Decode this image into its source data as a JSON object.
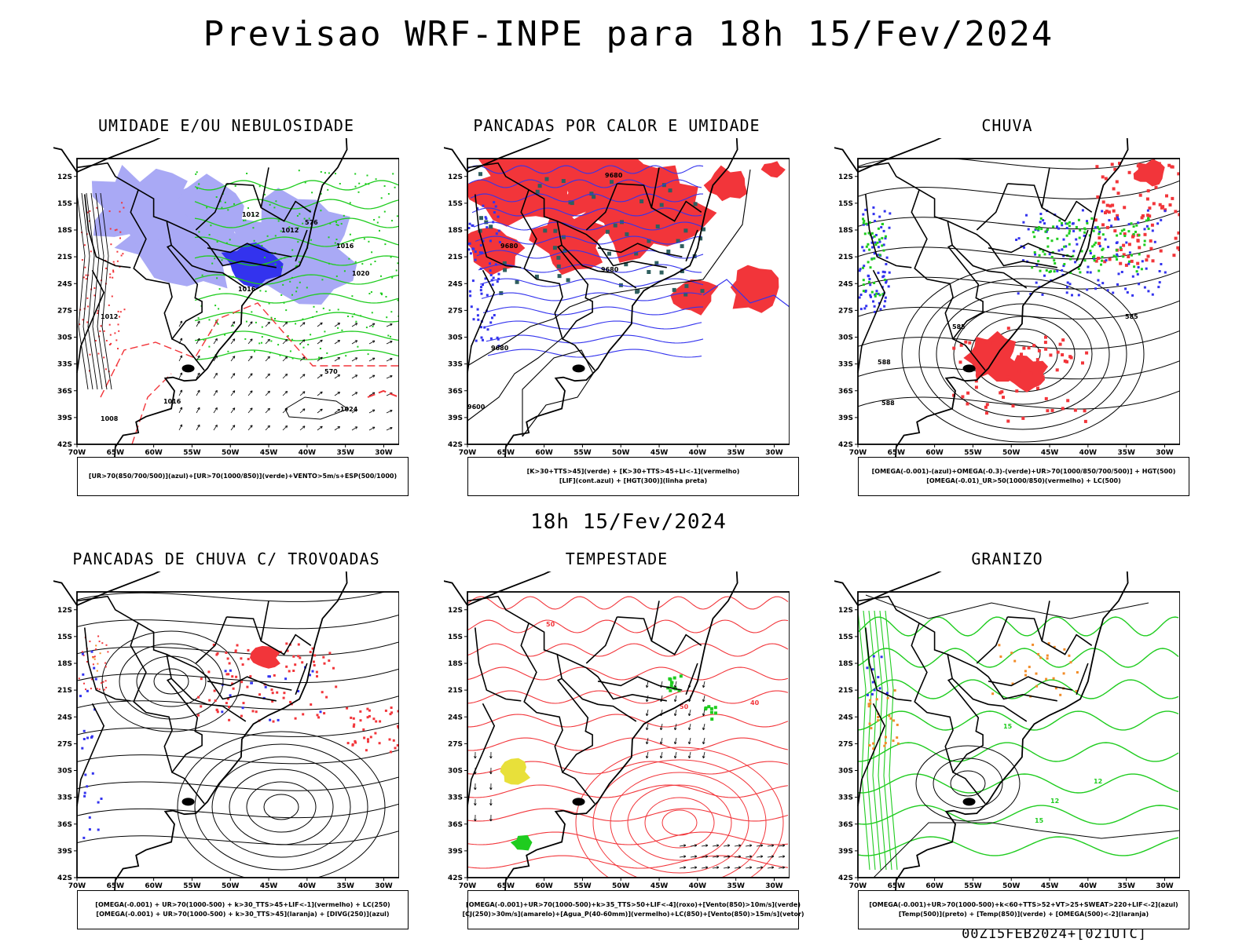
{
  "title": "Previsao WRF-INPE  para 18h 15/Fev/2024",
  "middle_title": "18h 15/Fev/2024",
  "footer": "00Z15FEB2024+[021UTC]",
  "axes": {
    "lat_labels": [
      "12S",
      "15S",
      "18S",
      "21S",
      "24S",
      "27S",
      "30S",
      "33S",
      "36S",
      "39S",
      "42S"
    ],
    "lon_labels": [
      "70W",
      "65W",
      "60W",
      "55W",
      "50W",
      "45W",
      "40W",
      "35W",
      "30W"
    ]
  },
  "colors": {
    "humid_blue": "#a9a9f5",
    "deep_blue": "#3333ee",
    "green": "#1fcc1f",
    "red": "#f2353a",
    "orange": "#f28c28",
    "yellow": "#e8e03a"
  },
  "panels": [
    {
      "title": "UMIDADE E/OU NEBULOSIDADE",
      "legend": [
        "[UR>70(850/700/500)](azul)+[UR>70(1000/850)](verde)+VENTO>5m/s+ESP(500/1000)"
      ],
      "labels": [
        "1012",
        "1012",
        "1016",
        "1016",
        "1020",
        "1024",
        "1008",
        "1016",
        "1012",
        "576",
        "570"
      ]
    },
    {
      "title": "PANCADAS POR CALOR E UMIDADE",
      "legend": [
        "[K>30+TTS>45](verde) + [K>30+TTS>45+LI<-1](vermelho)",
        "[LIF](cont.azul) + [HGT(300)](linha preta)"
      ],
      "labels": [
        "9680",
        "9680",
        "9600",
        "9680",
        "9680"
      ]
    },
    {
      "title": "CHUVA",
      "legend": [
        "[OMEGA(-0.001)-(azul)+OMEGA(-0.3)-(verde)+UR>70(1000/850/700/500)] + HGT(500)",
        "[OMEGA(-0.01)_UR>50(1000/850)(vermelho) + LC(500)"
      ],
      "labels": [
        "585",
        "588",
        "588",
        "585"
      ]
    },
    {
      "title": "PANCADAS DE CHUVA C/ TROVOADAS",
      "legend": [
        "[OMEGA(-0.001) + UR>70(1000-500) + k>30_TTS>45+LIF<-1](vermelho) + LC(250)",
        "[OMEGA(-0.001) + UR>70(1000-500) + k>30_TTS>45](laranja) + [DIVG(250)](azul)"
      ],
      "labels": []
    },
    {
      "title": "TEMPESTADE",
      "legend": [
        "[OMEGA(-0.001)+UR>70(1000-500)+k>35_TTS>50+LIF<-4](roxo)+[Vento(850)>10m/s](verde)",
        "[CJ(250)>30m/s](amarelo)+[Agua_P(40-60mm)](vermelho)+LC(850)+[Vento(850)>15m/s](vetor)"
      ],
      "labels": [
        "50",
        "50",
        "40"
      ]
    },
    {
      "title": "GRANIZO",
      "legend": [
        "[OMEGA(-0.001)+UR>70(1000-500)+k<60+TTS>52+VT>25+SWEAT>220+LIF<-2](azul)",
        "[Temp(500)](preto) + [Temp(850)](verde) + [OMEGA(500)<-2](laranja)"
      ],
      "labels": [
        "15",
        "12",
        "15",
        "12"
      ]
    }
  ]
}
